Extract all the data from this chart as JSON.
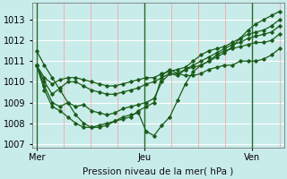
{
  "title": "",
  "xlabel": "Pression niveau de la mer( hPa )",
  "bg_color": "#c8ecea",
  "grid_color_major_h": "#ffffff",
  "grid_color_major_v": "#ff9999",
  "line_color": "#1a5c1a",
  "x_ticks": [
    0,
    48,
    96
  ],
  "x_tick_labels": [
    "Mer",
    "Jeu",
    "Ven"
  ],
  "x_vlines": [
    0,
    48,
    96
  ],
  "ylim": [
    1006.8,
    1013.8
  ],
  "y_ticks": [
    1007,
    1008,
    1009,
    1010,
    1011,
    1012,
    1013
  ],
  "xlim": [
    -2,
    110
  ],
  "total_hours": 108,
  "series": [
    [
      1011.5,
      1010.8,
      1010.2,
      1009.6,
      1009.0,
      1008.4,
      1008.0,
      1007.8,
      1007.8,
      1007.9,
      1008.1,
      1008.3,
      1008.4,
      1008.5,
      1007.6,
      1007.4,
      1007.9,
      1008.3,
      1009.1,
      1009.9,
      1010.5,
      1010.8,
      1011.0,
      1011.2,
      1011.4,
      1011.7,
      1012.1,
      1012.5,
      1012.8,
      1013.0,
      1013.2,
      1013.4
    ],
    [
      1010.8,
      1010.2,
      1009.9,
      1010.1,
      1010.2,
      1010.2,
      1010.1,
      1010.0,
      1009.9,
      1009.8,
      1009.8,
      1009.9,
      1010.0,
      1010.1,
      1010.2,
      1010.2,
      1010.4,
      1010.5,
      1010.6,
      1010.7,
      1011.0,
      1011.3,
      1011.5,
      1011.6,
      1011.7,
      1011.9,
      1012.1,
      1012.3,
      1012.4,
      1012.5,
      1012.7,
      1013.0
    ],
    [
      1010.8,
      1010.0,
      1009.4,
      1009.7,
      1010.0,
      1010.0,
      1009.8,
      1009.6,
      1009.5,
      1009.4,
      1009.4,
      1009.5,
      1009.6,
      1009.7,
      1009.9,
      1010.0,
      1010.2,
      1010.4,
      1010.4,
      1010.6,
      1010.8,
      1011.0,
      1011.2,
      1011.4,
      1011.6,
      1011.8,
      1011.9,
      1012.1,
      1012.2,
      1012.3,
      1012.4,
      1012.7
    ],
    [
      1010.8,
      1009.8,
      1009.0,
      1008.8,
      1009.0,
      1008.8,
      1008.9,
      1008.6,
      1008.5,
      1008.4,
      1008.5,
      1008.7,
      1008.8,
      1008.9,
      1009.0,
      1009.2,
      1010.0,
      1010.4,
      1010.3,
      1010.6,
      1010.7,
      1010.8,
      1011.0,
      1011.3,
      1011.5,
      1011.6,
      1011.7,
      1011.8,
      1011.9,
      1011.9,
      1012.0,
      1012.3
    ],
    [
      1010.8,
      1009.6,
      1008.8,
      1008.6,
      1008.3,
      1008.0,
      1007.8,
      1007.8,
      1007.9,
      1008.0,
      1008.1,
      1008.2,
      1008.3,
      1008.6,
      1008.8,
      1009.0,
      1010.3,
      1010.6,
      1010.4,
      1010.3,
      1010.3,
      1010.4,
      1010.6,
      1010.7,
      1010.8,
      1010.8,
      1011.0,
      1011.0,
      1011.0,
      1011.1,
      1011.3,
      1011.6
    ]
  ]
}
